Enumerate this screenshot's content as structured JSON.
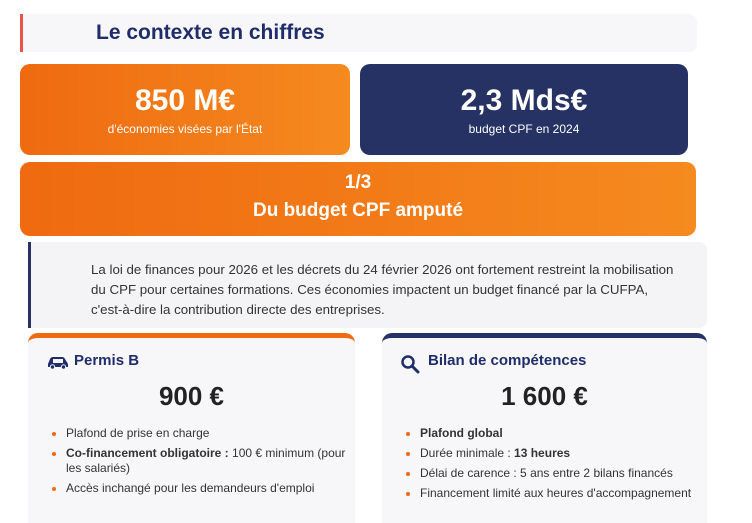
{
  "header": {
    "title": "Le contexte en chiffres"
  },
  "stats": [
    {
      "value": "850 M€",
      "label": "d'économies visées par l'État"
    },
    {
      "value": "2,3 Mds€",
      "label": "budget CPF en 2024"
    }
  ],
  "highlight": {
    "value": "1/3",
    "label": "Du budget CPF amputé"
  },
  "paragraph": "La loi de finances pour 2026 et les décrets du 24 février 2026 ont fortement restreint la mobilisation du CPF pour certaines formations. Ces économies impactent un budget financé par la CUFPA, c'est-à-dire la contribution directe des entreprises.",
  "cards": [
    {
      "title": "Permis B",
      "amount": "900 €",
      "items": [
        [
          {
            "text": "Plafond de prise en charge",
            "bold": false
          }
        ],
        [
          {
            "text": "Co-financement obligatoire :",
            "bold": true
          },
          {
            "text": "100 € minimum (pour les salariés)",
            "bold": false
          }
        ],
        [
          {
            "text": "Accès inchangé pour les demandeurs d'emploi",
            "bold": false
          }
        ]
      ]
    },
    {
      "title": "Bilan de compétences",
      "amount": "1 600 €",
      "items": [
        [
          {
            "text": "Plafond global",
            "bold": true
          }
        ],
        [
          {
            "text": "Durée minimale :",
            "bold": false
          },
          {
            "text": "13 heures",
            "bold": true
          }
        ],
        [
          {
            "text": "Délai de carence : 5 ans entre 2 bilans financés",
            "bold": false
          }
        ],
        [
          {
            "text": "Financement limité aux heures d'accompagnement",
            "bold": false
          }
        ]
      ]
    }
  ]
}
